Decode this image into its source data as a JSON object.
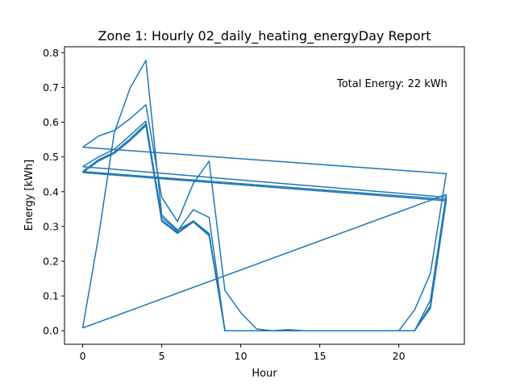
{
  "chart_data": {
    "type": "line",
    "title": "Zone 1: Hourly 02_daily_heating_energyDay Report",
    "xlabel": "Hour",
    "ylabel": "Energy [kWh]",
    "annotation": "Total Energy: 22 kWh",
    "xlim": [
      -1.15,
      24.15
    ],
    "ylim": [
      -0.039,
      0.817
    ],
    "xticks": [
      0,
      5,
      10,
      15,
      20
    ],
    "yticks": [
      0.0,
      0.1,
      0.2,
      0.3,
      0.4,
      0.5,
      0.6,
      0.7,
      0.8
    ],
    "color": "#1f77b4",
    "grid": false,
    "x": [
      0,
      1,
      2,
      3,
      4,
      5,
      6,
      7,
      8,
      9,
      10,
      11,
      12,
      13,
      14,
      15,
      16,
      17,
      18,
      19,
      20,
      21,
      22,
      23
    ],
    "series": [
      {
        "values": [
          0.528,
          0.56,
          0.576,
          0.61,
          0.65,
          0.384,
          0.314,
          0.424,
          0.488,
          0.116,
          0.052,
          0.005,
          0,
          0,
          0,
          0,
          0,
          0,
          0,
          0,
          0,
          0.06,
          0.165,
          0.452
        ]
      },
      {
        "values": [
          0.008,
          0.27,
          0.57,
          0.698,
          0.778,
          0.333,
          0.29,
          0.315,
          0.278,
          0,
          0,
          0,
          0,
          0.003,
          0,
          0,
          0,
          0,
          0,
          0,
          0,
          0,
          0.088,
          0.392
        ]
      },
      {
        "values": [
          0.472,
          0.5,
          0.522,
          0.562,
          0.603,
          0.326,
          0.287,
          0.348,
          0.326,
          0,
          0,
          0,
          0,
          0,
          0,
          0,
          0,
          0,
          0,
          0,
          0,
          0,
          0.072,
          0.384
        ]
      },
      {
        "values": [
          0.458,
          0.492,
          0.514,
          0.552,
          0.595,
          0.318,
          0.283,
          0.316,
          0.28,
          0,
          0,
          0,
          0,
          0,
          0,
          0,
          0,
          0,
          0,
          0,
          0,
          0,
          0.068,
          0.378
        ]
      },
      {
        "values": [
          0.455,
          0.488,
          0.51,
          0.547,
          0.59,
          0.315,
          0.28,
          0.313,
          0.273,
          0,
          0,
          0,
          0,
          0,
          0,
          0,
          0,
          0,
          0,
          0,
          0,
          0,
          0.065,
          0.374
        ]
      }
    ]
  }
}
